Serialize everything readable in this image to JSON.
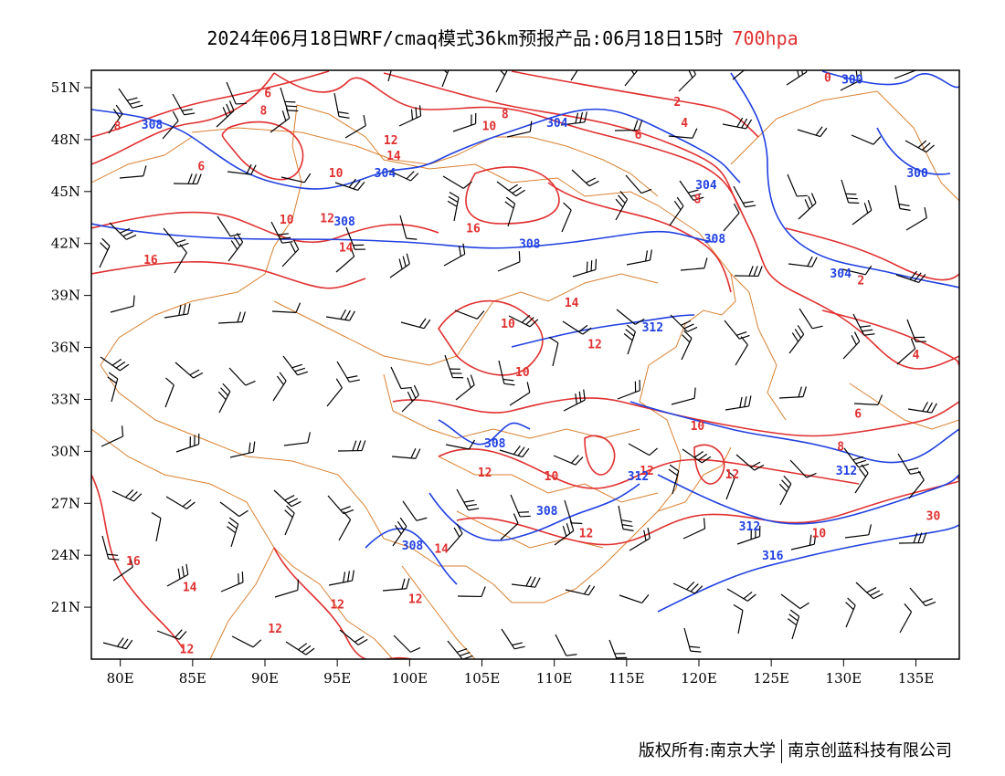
{
  "title": {
    "text": "2024年06月18日WRF/cmaq模式36km预报产品:06月18日15时",
    "level": "700hpa"
  },
  "colors": {
    "temperature": "#e03030",
    "geopotential": "#2040e0",
    "border": "#d98030",
    "wind": "#000000",
    "level": "#e03030"
  },
  "map_extent": {
    "lon": [
      78,
      138
    ],
    "lat": [
      18,
      52
    ]
  },
  "lat_labels": [
    {
      "lat": 51,
      "text": "51N"
    },
    {
      "lat": 48,
      "text": "48N"
    },
    {
      "lat": 45,
      "text": "45N"
    },
    {
      "lat": 42,
      "text": "42N"
    },
    {
      "lat": 39,
      "text": "39N"
    },
    {
      "lat": 36,
      "text": "36N"
    },
    {
      "lat": 33,
      "text": "33N"
    },
    {
      "lat": 30,
      "text": "30N"
    },
    {
      "lat": 27,
      "text": "27N"
    },
    {
      "lat": 24,
      "text": "24N"
    },
    {
      "lat": 21,
      "text": "21N"
    }
  ],
  "lon_labels": [
    {
      "lon": 80,
      "text": "80E"
    },
    {
      "lon": 85,
      "text": "85E"
    },
    {
      "lon": 90,
      "text": "90E"
    },
    {
      "lon": 95,
      "text": "95E"
    },
    {
      "lon": 100,
      "text": "100E"
    },
    {
      "lon": 105,
      "text": "105E"
    },
    {
      "lon": 110,
      "text": "110E"
    },
    {
      "lon": 115,
      "text": "115E"
    },
    {
      "lon": 120,
      "text": "120E"
    },
    {
      "lon": 125,
      "text": "125E"
    },
    {
      "lon": 130,
      "text": "130E"
    },
    {
      "lon": 135,
      "text": "135E"
    }
  ],
  "temperature_labels": [
    {
      "text": "6",
      "lon": 90.2,
      "lat": 50.7
    },
    {
      "text": "8",
      "lon": 89.9,
      "lat": 49.7
    },
    {
      "text": "8",
      "lon": 79.8,
      "lat": 48.8
    },
    {
      "text": "6",
      "lon": 85.6,
      "lat": 46.5
    },
    {
      "text": "8",
      "lon": 106.6,
      "lat": 49.5
    },
    {
      "text": "10",
      "lon": 105.5,
      "lat": 48.8
    },
    {
      "text": "12",
      "lon": 98.7,
      "lat": 48.0
    },
    {
      "text": "14",
      "lon": 98.9,
      "lat": 47.1
    },
    {
      "text": "10",
      "lon": 94.9,
      "lat": 46.1
    },
    {
      "text": "12",
      "lon": 94.3,
      "lat": 43.5
    },
    {
      "text": "10",
      "lon": 91.5,
      "lat": 43.4
    },
    {
      "text": "14",
      "lon": 95.6,
      "lat": 41.8
    },
    {
      "text": "16",
      "lon": 82.1,
      "lat": 41.1
    },
    {
      "text": "16",
      "lon": 104.4,
      "lat": 42.9
    },
    {
      "text": "0",
      "lon": 128.9,
      "lat": 51.6
    },
    {
      "text": "2",
      "lon": 118.5,
      "lat": 50.2
    },
    {
      "text": "4",
      "lon": 119.0,
      "lat": 49.0
    },
    {
      "text": "6",
      "lon": 115.8,
      "lat": 48.3
    },
    {
      "text": "8",
      "lon": 119.9,
      "lat": 44.6
    },
    {
      "text": "2",
      "lon": 131.2,
      "lat": 39.9
    },
    {
      "text": "14",
      "lon": 111.2,
      "lat": 38.6
    },
    {
      "text": "10",
      "lon": 106.8,
      "lat": 37.4
    },
    {
      "text": "12",
      "lon": 112.8,
      "lat": 36.2
    },
    {
      "text": "10",
      "lon": 107.8,
      "lat": 34.6
    },
    {
      "text": "4",
      "lon": 135.0,
      "lat": 35.6
    },
    {
      "text": "6",
      "lon": 131.0,
      "lat": 32.2
    },
    {
      "text": "10",
      "lon": 119.9,
      "lat": 31.5
    },
    {
      "text": "8",
      "lon": 129.8,
      "lat": 30.3
    },
    {
      "text": "12",
      "lon": 105.2,
      "lat": 28.8
    },
    {
      "text": "10",
      "lon": 109.8,
      "lat": 28.6
    },
    {
      "text": "12",
      "lon": 116.4,
      "lat": 28.9
    },
    {
      "text": "12",
      "lon": 122.3,
      "lat": 28.7
    },
    {
      "text": "12",
      "lon": 112.2,
      "lat": 25.3
    },
    {
      "text": "14",
      "lon": 102.2,
      "lat": 24.4
    },
    {
      "text": "10",
      "lon": 128.3,
      "lat": 25.3
    },
    {
      "text": "16",
      "lon": 80.9,
      "lat": 23.7
    },
    {
      "text": "14",
      "lon": 84.8,
      "lat": 22.2
    },
    {
      "text": "12",
      "lon": 95.0,
      "lat": 21.2
    },
    {
      "text": "12",
      "lon": 100.4,
      "lat": 21.5
    },
    {
      "text": "12",
      "lon": 90.7,
      "lat": 19.8
    },
    {
      "text": "12",
      "lon": 84.6,
      "lat": 18.6
    },
    {
      "text": "30",
      "lon": 136.2,
      "lat": 26.3
    }
  ],
  "height_labels": [
    {
      "text": "308",
      "lon": 82.2,
      "lat": 48.9
    },
    {
      "text": "304",
      "lon": 110.2,
      "lat": 49.0
    },
    {
      "text": "304",
      "lon": 98.3,
      "lat": 46.1
    },
    {
      "text": "300",
      "lon": 130.6,
      "lat": 51.5
    },
    {
      "text": "300",
      "lon": 135.1,
      "lat": 46.1
    },
    {
      "text": "304",
      "lon": 120.5,
      "lat": 45.4
    },
    {
      "text": "308",
      "lon": 95.5,
      "lat": 43.3
    },
    {
      "text": "308",
      "lon": 108.3,
      "lat": 42.0
    },
    {
      "text": "308",
      "lon": 121.1,
      "lat": 42.3
    },
    {
      "text": "304",
      "lon": 129.8,
      "lat": 40.3
    },
    {
      "text": "312",
      "lon": 116.8,
      "lat": 37.2
    },
    {
      "text": "308",
      "lon": 105.9,
      "lat": 30.5
    },
    {
      "text": "312",
      "lon": 115.8,
      "lat": 28.6
    },
    {
      "text": "308",
      "lon": 109.5,
      "lat": 26.6
    },
    {
      "text": "312",
      "lon": 130.2,
      "lat": 28.9
    },
    {
      "text": "312",
      "lon": 123.5,
      "lat": 25.7
    },
    {
      "text": "308",
      "lon": 100.2,
      "lat": 24.6
    },
    {
      "text": "316",
      "lon": 125.1,
      "lat": 24.0
    }
  ],
  "footer": {
    "left": "版权所有:南京大学",
    "right": "南京创蓝科技有限公司"
  }
}
